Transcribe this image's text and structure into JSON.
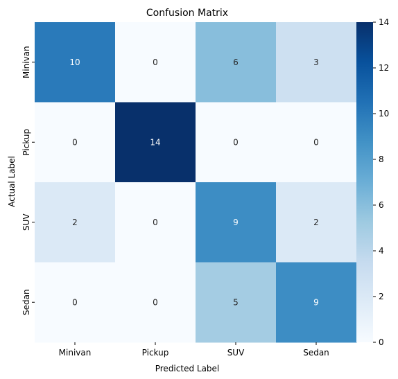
{
  "chart_data": {
    "type": "heatmap",
    "title": "Confusion Matrix",
    "xlabel": "Predicted Label",
    "ylabel": "Actual Label",
    "x_categories": [
      "Minivan",
      "Pickup",
      "SUV",
      "Sedan"
    ],
    "y_categories": [
      "Minivan",
      "Pickup",
      "SUV",
      "Sedan"
    ],
    "values": [
      [
        10,
        0,
        6,
        3
      ],
      [
        0,
        14,
        0,
        0
      ],
      [
        2,
        0,
        9,
        2
      ],
      [
        0,
        0,
        5,
        9
      ]
    ],
    "colorbar": {
      "range": [
        0,
        14
      ],
      "ticks": [
        0,
        2,
        4,
        6,
        8,
        10,
        12,
        14
      ],
      "colormap": "Blues"
    },
    "annotated": true,
    "grid": false
  }
}
